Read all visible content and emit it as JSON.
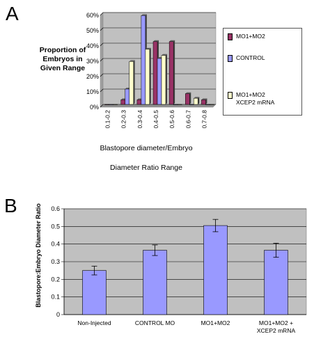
{
  "panels": {
    "a_letter": "A",
    "b_letter": "B"
  },
  "colors": {
    "maroon": "#993366",
    "blue": "#9999ff",
    "cream": "#ffffcc",
    "plot_bg": "#c0c0c0",
    "bar_blue": "#9999ff"
  },
  "chart_data": [
    {
      "type": "bar",
      "ylabel": "Proportion of\nEmbryos in\nGiven Range",
      "xlabel_line1": "Blastopore diameter/Embryo",
      "xlabel_line2": "Diameter Ratio Range",
      "categories": [
        "0.1-0.2",
        "0.2-0.3",
        "0.3-0.4",
        "0.4-0.5",
        "0.5-0.6",
        "0.6-0.7",
        "0.7-0.8"
      ],
      "ytick_labels": [
        "0%",
        "10%",
        "20%",
        "30%",
        "40%",
        "50%",
        "60%"
      ],
      "ylim": [
        0,
        60
      ],
      "grid": true,
      "legend_position": "right",
      "series": [
        {
          "name": "MO1+MO2",
          "color": "#993366",
          "values": [
            0,
            3,
            3,
            41,
            41,
            7,
            3
          ]
        },
        {
          "name": "CONTROL",
          "color": "#9999ff",
          "values": [
            0,
            10,
            58,
            30,
            0,
            0,
            0
          ]
        },
        {
          "name": "MO1+MO2\nXCEP2 mRNA",
          "color": "#ffffcc",
          "values": [
            0,
            28,
            36,
            32,
            0,
            4,
            0
          ]
        }
      ]
    },
    {
      "type": "bar",
      "ylabel": "Blastopore:Embryo Diameter Ratio",
      "categories": [
        "Non-Injected",
        "CONTROL MO",
        "MO1+MO2",
        "MO1+MO2 +\nXCEP2 mRNA"
      ],
      "values": [
        0.25,
        0.365,
        0.505,
        0.365
      ],
      "errors": [
        0.025,
        0.03,
        0.035,
        0.04
      ],
      "ytick_labels": [
        "0",
        "0.1",
        "0.2",
        "0.3",
        "0.4",
        "0.5",
        "0.6"
      ],
      "ylim": [
        0,
        0.6
      ],
      "grid": true
    }
  ]
}
